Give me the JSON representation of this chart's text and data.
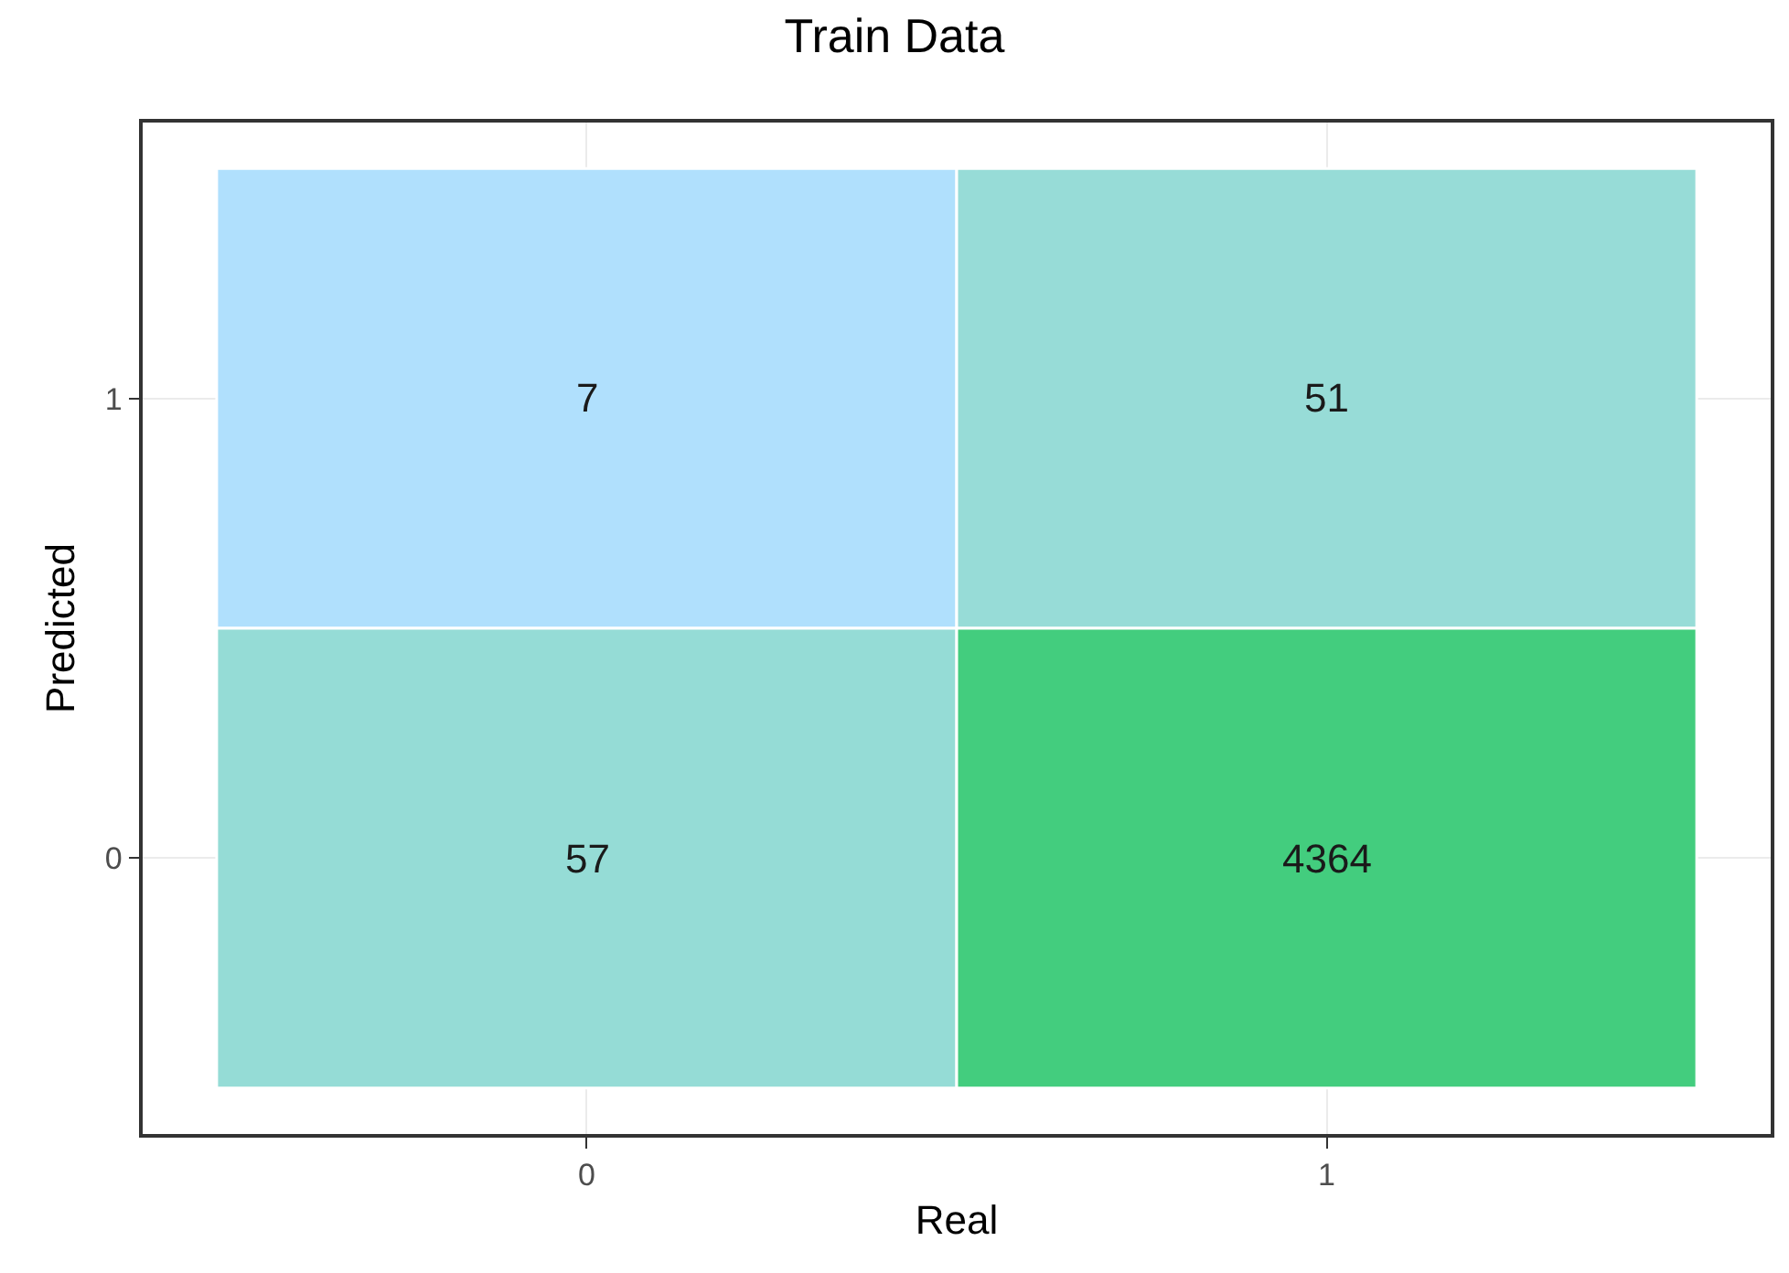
{
  "chart_data": {
    "type": "heatmap",
    "title": "Train Data",
    "xlabel": "Real",
    "ylabel": "Predicted",
    "categories": [
      "0",
      "1"
    ],
    "y_categories": [
      "1",
      "0"
    ],
    "cells": [
      [
        7,
        51
      ],
      [
        57,
        4364
      ]
    ],
    "colors": [
      "#b0e0fd",
      "#97dcd7",
      "#95dcd6",
      "#43cd7e"
    ],
    "data_labels": true,
    "grid": true
  }
}
